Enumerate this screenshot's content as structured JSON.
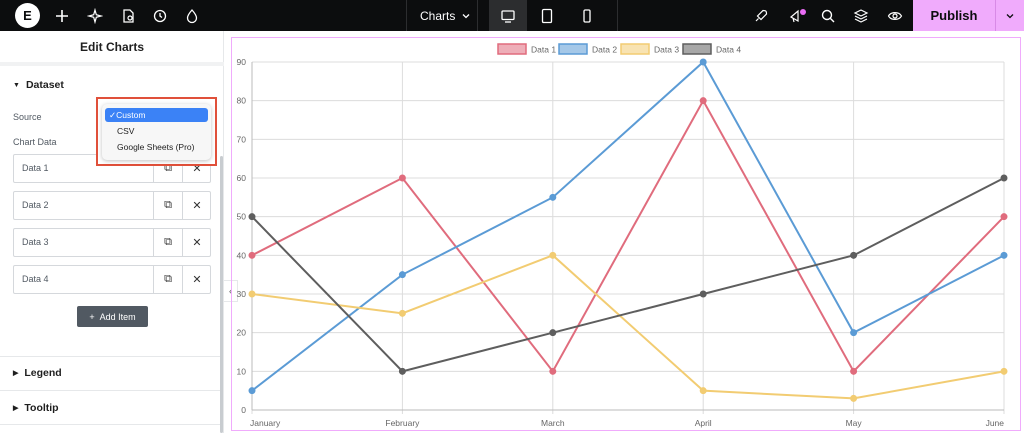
{
  "topbar": {
    "logo": "E",
    "charts_label": "Charts",
    "publish_label": "Publish"
  },
  "panel": {
    "title": "Edit Charts",
    "dataset_label": "Dataset",
    "source_label": "Source",
    "chart_data_label": "Chart Data",
    "source_options": [
      "Custom",
      "CSV",
      "Google Sheets (Pro)"
    ],
    "selected_source": "Custom",
    "items": [
      "Data 1",
      "Data 2",
      "Data 3",
      "Data 4"
    ],
    "add_item_label": "Add Item",
    "legend_label": "Legend",
    "tooltip_label": "Tooltip"
  },
  "colors": {
    "accent": "#f0abfc",
    "data1": "#e06c7d",
    "data2": "#5b9bd5",
    "data3": "#f2cc72",
    "data4": "#5e5e5e"
  },
  "chart_data": {
    "type": "line",
    "categories": [
      "January",
      "February",
      "March",
      "April",
      "May",
      "June"
    ],
    "ylim": [
      0,
      90
    ],
    "yticks": [
      0,
      10,
      20,
      30,
      40,
      50,
      60,
      70,
      80,
      90
    ],
    "grid": true,
    "legend_position": "top",
    "series": [
      {
        "name": "Data 1",
        "color": "#e06c7d",
        "values": [
          40,
          60,
          10,
          80,
          10,
          50
        ]
      },
      {
        "name": "Data 2",
        "color": "#5b9bd5",
        "values": [
          5,
          35,
          55,
          90,
          20,
          40
        ]
      },
      {
        "name": "Data 3",
        "color": "#f2cc72",
        "values": [
          30,
          25,
          40,
          5,
          3,
          10
        ]
      },
      {
        "name": "Data 4",
        "color": "#5e5e5e",
        "values": [
          50,
          10,
          20,
          30,
          40,
          60
        ]
      }
    ]
  }
}
